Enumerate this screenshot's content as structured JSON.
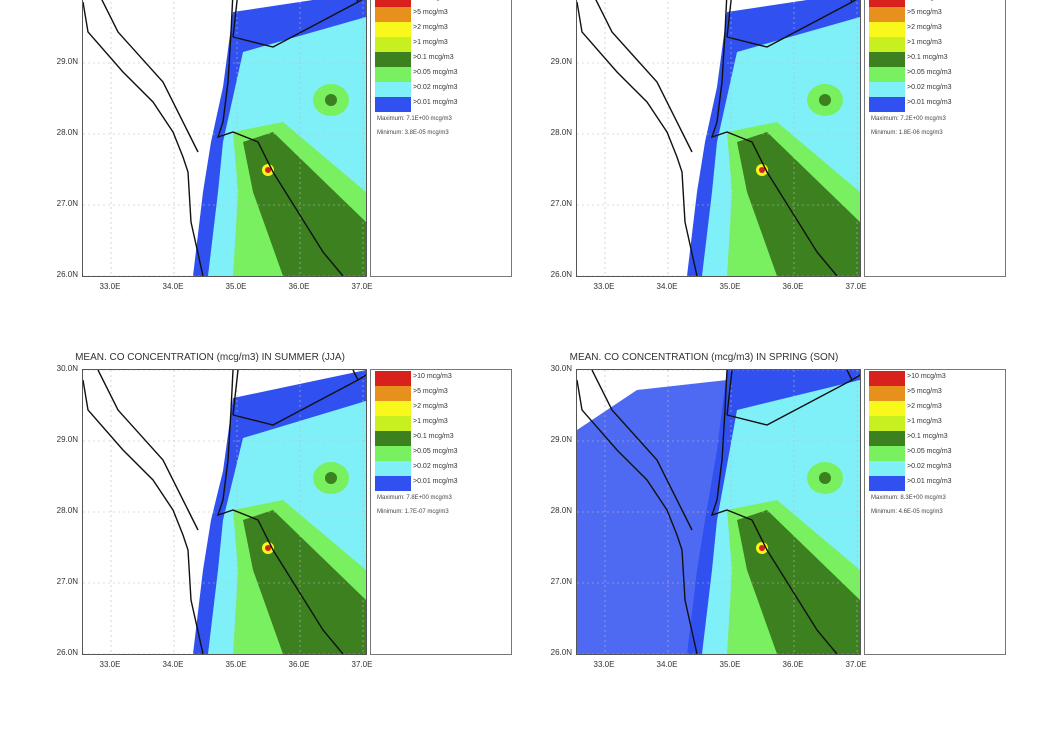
{
  "legend_levels": [
    {
      "label": ">10 mcg/m3",
      "color": "#d8201c"
    },
    {
      "label": ">5 mcg/m3",
      "color": "#e8901c"
    },
    {
      "label": ">2 mcg/m3",
      "color": "#f8f81c"
    },
    {
      "label": ">1 mcg/m3",
      "color": "#c8f020"
    },
    {
      "label": ">0.1 mcg/m3",
      "color": "#3c8020"
    },
    {
      "label": ">0.05 mcg/m3",
      "color": "#78f060"
    },
    {
      "label": ">0.02 mcg/m3",
      "color": "#80f0f8"
    },
    {
      "label": ">0.01 mcg/m3",
      "color": "#3050f0"
    }
  ],
  "y_ticks": [
    "30.0N",
    "29.0N",
    "28.0N",
    "27.0N",
    "26.0N"
  ],
  "x_ticks": [
    "33.0E",
    "34.0E",
    "35.0E",
    "36.0E",
    "37.0E"
  ],
  "panels": [
    {
      "title": "",
      "maximum": "Maximum: 7.1E+00 mcg/m3",
      "minimum": "Minimum: 3.8E-05 mcg/m3"
    },
    {
      "title": "",
      "maximum": "Maximum: 7.2E+00 mcg/m3",
      "minimum": "Minimum: 1.8E-06 mcg/m3"
    },
    {
      "title": "MEAN. CO CONCENTRATION (mcg/m3) IN SUMMER (JJA)",
      "maximum": "Maximum: 7.8E+00 mcg/m3",
      "minimum": "Minimum: 1.7E-07 mcg/m3"
    },
    {
      "title": "MEAN. CO CONCENTRATION (mcg/m3) IN SPRING (SON)",
      "maximum": "Maximum: 8.3E+00 mcg/m3",
      "minimum": "Minimum: 4.6E-05 mcg/m3"
    }
  ]
}
